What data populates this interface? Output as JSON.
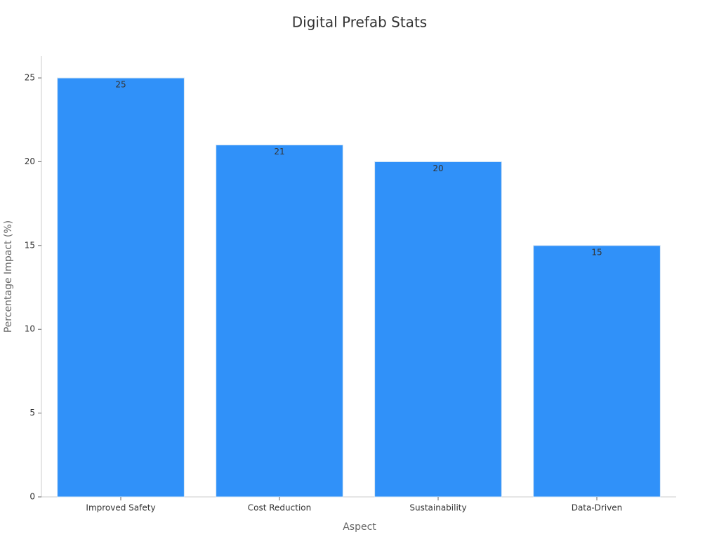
{
  "chart_data": {
    "type": "bar",
    "title": "Digital Prefab Stats",
    "x_label": "Aspect",
    "y_label": "Percentage Impact (%)",
    "categories": [
      "Improved Safety",
      "Cost Reduction",
      "Sustainability",
      "Data-Driven"
    ],
    "values": [
      25,
      21,
      20,
      15
    ],
    "color": "#3091f9",
    "ylim": [
      0,
      26.3
    ],
    "yticks": [
      0,
      5,
      10,
      15,
      20,
      25
    ],
    "grid": false
  }
}
